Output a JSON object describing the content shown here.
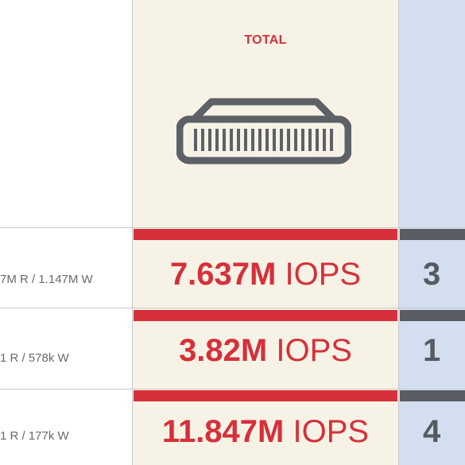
{
  "header": {
    "total_label": "TOTAL",
    "icon": "storage-array-icon"
  },
  "colors": {
    "accent": "#d6303a",
    "total_bg": "#f6f2e6",
    "right_bg": "#d3dff0",
    "right_bar": "#585d63"
  },
  "rows": [
    {
      "label": "7M R / 1.147M W",
      "value": "7.637M",
      "unit": " IOPS",
      "peek": "3"
    },
    {
      "label": "1 R / 578k W",
      "value": "3.82M",
      "unit": " IOPS",
      "peek": "1"
    },
    {
      "label": "1 R / 177k W",
      "value": "11.847M",
      "unit": " IOPS",
      "peek": "4"
    }
  ]
}
